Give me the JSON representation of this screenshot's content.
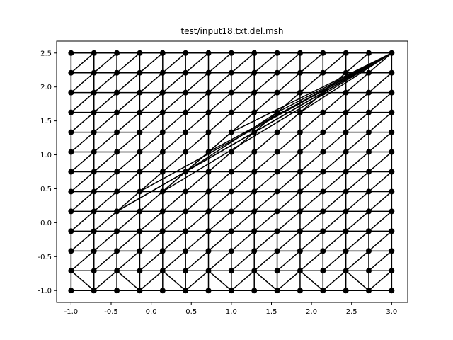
{
  "chart_data": {
    "type": "mesh",
    "title": "test/input18.txt.del.msh",
    "xlim": [
      -1.18,
      3.2
    ],
    "ylim": [
      -1.175,
      2.675
    ],
    "x_ticks": [
      "-1.0",
      "-0.5",
      "0.0",
      "0.5",
      "1.0",
      "1.5",
      "2.0",
      "2.5",
      "3.0"
    ],
    "y_ticks": [
      "-1.0",
      "-0.5",
      "0.0",
      "0.5",
      "1.0",
      "1.5",
      "2.0",
      "2.5"
    ],
    "grid_x_range": [
      -1.0,
      3.0
    ],
    "grid_y_range": [
      -1.0,
      2.5
    ],
    "grid_columns": 15,
    "grid_rows": 13,
    "diagonal_constraint_from": [
      -0.4286,
      0.1667
    ],
    "diagonal_constraint_to": [
      3.0,
      2.5
    ],
    "marker": "o",
    "color": "#000000",
    "grid": false
  }
}
